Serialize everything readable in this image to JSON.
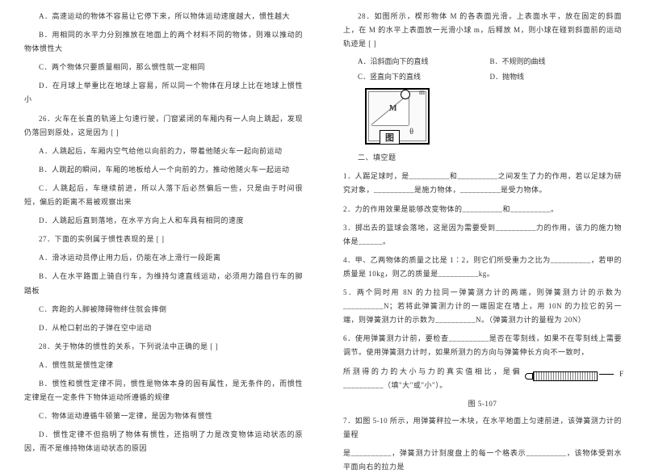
{
  "left": {
    "opts_25": {
      "A": "A．高速运动的物体不容易让它停下来，所以物体运动速度越大，惯性越大",
      "B": "B．用相同的水平力分别推放在地面上的两个材料不同的物体，则难以推动的物体惯性大",
      "C": "C．两个物体只要质量相同，那么惯性就一定相同",
      "D": "D．在月球上举重比在地球上容易，所以同一个物体在月球上比在地球上惯性小"
    },
    "q26_stem": "26．火车在长直的轨道上匀速行驶，门窗紧闭的车厢内有一人向上跳起，发现仍落回到原处，这是因为 [ ]",
    "opts_26": {
      "A": "A．人跳起后，车厢内空气给他以向前的力，带着他随火车一起向前运动",
      "B": "B．人跳起的瞬间，车厢的地板给人一个向前的力，推动他随火车一起运动",
      "C": "C．人跳起后，车继续前进，所以人落下后必然偏后一些，只是由于时间很短，偏后的距离不易被观察出来",
      "D": "D．人跳起后直到落地，在水平方向上人和车具有相同的速度"
    },
    "q27_stem": "27．下面的实例属于惯性表现的是 [ ]",
    "opts_27": {
      "A": "A．滑冰运动员停止用力后，仍能在冰上滑行一段距离",
      "B": "B．人在水平路面上骑自行车，为维持匀速直线运动，必须用力踏自行车的脚踏板",
      "C": "C．奔跑的人脚被障碍物绊住就会摔倒",
      "D": "D．从枪口射出的子弹在空中运动"
    },
    "q28_stem": "28．关于物体的惯性的关系，下列说法中正确的是 [ ]",
    "opts_28": {
      "A": "A．惯性就是惯性定律",
      "B": "B．惯性和惯性定律不同，惯性是物体本身的固有属性，是无条件的，而惯性定律是在一定条件下物体运动所遵循的规律",
      "C": "C．物体运动遵循牛顿第一定律，是因为物体有惯性",
      "D": "D．惯性定律不但指明了物体有惯性，还指明了力是改变物体运动状态的原因，而不是维持物体运动状态的原因"
    }
  },
  "right": {
    "q28b_stem": "28．如图所示，楔形物体 M 的各表面光滑，上表面水平，放在固定的斜面上，在 M 的水平上表面放一光滑小球 m，后释放 M，则小球在碰到斜面前的运动轨迹是 [ ]",
    "opts_28b": {
      "A": "A．沿斜面向下的直线",
      "B": "B．不规则的曲线",
      "C": "C．竖直向下的直线",
      "D": "D．抛物线"
    },
    "diagram": {
      "m": "m",
      "M": "M",
      "theta": "θ",
      "caption": "图"
    },
    "section": "二、填空题",
    "fill": {
      "q1": "1．人踢足球时，是__________和__________之间发生了力的作用，若以足球为研究对象，__________是施力物体，__________是受力物体。",
      "q2": "2．力的作用效果是能够改变物体的__________和__________。",
      "q3": "3．掷出去的篮球会落地，这是因为需要受到__________力的作用，该力的施力物体是______。",
      "q4": "4．甲、乙两物体的质量之比是 1∶2，则它们所受重力之比为__________，若甲的质量是 10kg，则乙的质量是__________kg。",
      "q5": "5．两个同时用 8N 的力拉同一弹簧测力计的两端，则弹簧测力计的示数为__________N；若将此弹簧测力计的一端固定在墙上，用 10N 的力拉它的另一端，则弹簧测力计的示数为__________N。（弹簧测力计的量程为 20N）",
      "q6_a": "6．使用弹簧测力计前，要检查__________是否在零刻线，如果不在零刻线上需要调节。使用弹簧测力计时，如果所测力的方向与弹簧伸长方向不一致时，",
      "q6_b": "所测得的力的大小与力的真实值相比，是偏__________（填\"大\"或\"小\"）。",
      "fig_caption": "图 5-107",
      "arrow": "F",
      "q7_a": "7．如图 5-10 所示，用弹簧秤拉一木块，在水平地面上匀速前进，该弹簧测力计的量程",
      "q7_b": "是__________，弹簧测力计刻度盘上的每一个格表示__________，该物体受到水平面向右的拉力是"
    }
  }
}
